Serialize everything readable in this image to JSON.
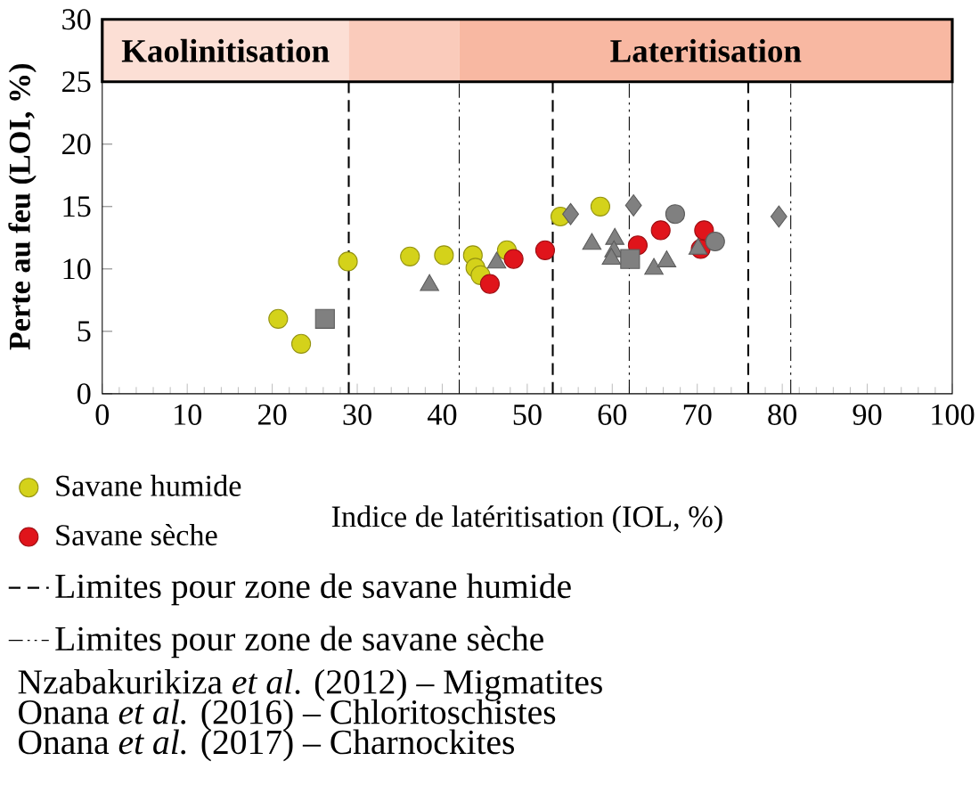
{
  "chart_data": {
    "type": "scatter",
    "xlabel": "Indice de latéritisation  (IOL, %)",
    "ylabel": "Perte au feu (LOI, %)",
    "xlim": [
      0,
      100
    ],
    "xticks": [
      0,
      10,
      20,
      30,
      40,
      50,
      60,
      70,
      80,
      90,
      100
    ],
    "ylim": [
      0,
      30
    ],
    "yticks": [
      0,
      5,
      10,
      15,
      20,
      25,
      30
    ],
    "legend": "bottom",
    "grid": false,
    "series": [
      {
        "name": "Savane humide",
        "color": "#d4d21a",
        "marker": "circle",
        "x": [
          20.7,
          23.4,
          28.9,
          36.2,
          40.2,
          43.6,
          43.9,
          44.5,
          47.6,
          53.9,
          58.6
        ],
        "values": [
          6.0,
          4.0,
          10.6,
          11.0,
          11.1,
          11.1,
          10.1,
          9.5,
          11.5,
          14.2,
          15.0
        ]
      },
      {
        "name": "Savane sèche",
        "color": "#e0141b",
        "marker": "circle",
        "x": [
          45.6,
          48.4,
          52.1,
          63.0,
          65.7,
          70.8,
          70.4
        ],
        "values": [
          8.8,
          10.8,
          11.5,
          11.9,
          13.1,
          13.1,
          11.6
        ]
      },
      {
        "color": "#808080",
        "marker": "triangle",
        "x": [
          38.5,
          46.4,
          57.6,
          60.3,
          60.2,
          59.9,
          64.9,
          66.4,
          70.1
        ],
        "values": [
          8.7,
          10.5,
          12.0,
          12.4,
          11.4,
          10.8,
          10.0,
          10.6,
          11.6
        ]
      },
      {
        "color": "#808080",
        "marker": "square",
        "x": [
          26.2,
          62.1
        ],
        "values": [
          6.0,
          10.8
        ]
      },
      {
        "color": "#808080",
        "marker": "diamond",
        "x": [
          55.1,
          62.5,
          79.6
        ],
        "values": [
          14.4,
          15.1,
          14.2
        ]
      },
      {
        "color": "#808080",
        "marker": "circle",
        "x": [
          67.4,
          72.1
        ],
        "values": [
          14.4,
          12.2
        ]
      }
    ],
    "ref_lines": [
      {
        "axis": "x",
        "value": 29,
        "label": "Limites pour zone de savane humide",
        "line_style": "dashed"
      },
      {
        "axis": "x",
        "value": 53,
        "line_style": "dashed"
      },
      {
        "axis": "x",
        "value": 76,
        "line_style": "dashed"
      },
      {
        "axis": "x",
        "value": 42,
        "label": "Limites pour zone de savane sèche",
        "line_style": "dashdot"
      },
      {
        "axis": "x",
        "value": 62,
        "line_style": "dashdot"
      },
      {
        "axis": "x",
        "value": 81,
        "line_style": "dashdot"
      }
    ],
    "bands": [
      {
        "axis": "x",
        "from": 0,
        "to": 29,
        "label": "Kaolinitisation",
        "color": "#fcdfd5"
      },
      {
        "axis": "x",
        "from": 29,
        "to": 42,
        "color": "#facbbb"
      },
      {
        "axis": "x",
        "from": 42,
        "to": 100,
        "label": "Lateritisation",
        "color": "#f8b8a2"
      }
    ],
    "annotations": [
      "Nzabakurikiza *et al*. (2012) – Migmatites",
      "Onana *et al.* (2016) – Chloritoschistes",
      "Onana *et al.* (2017) – Charnockites"
    ]
  }
}
